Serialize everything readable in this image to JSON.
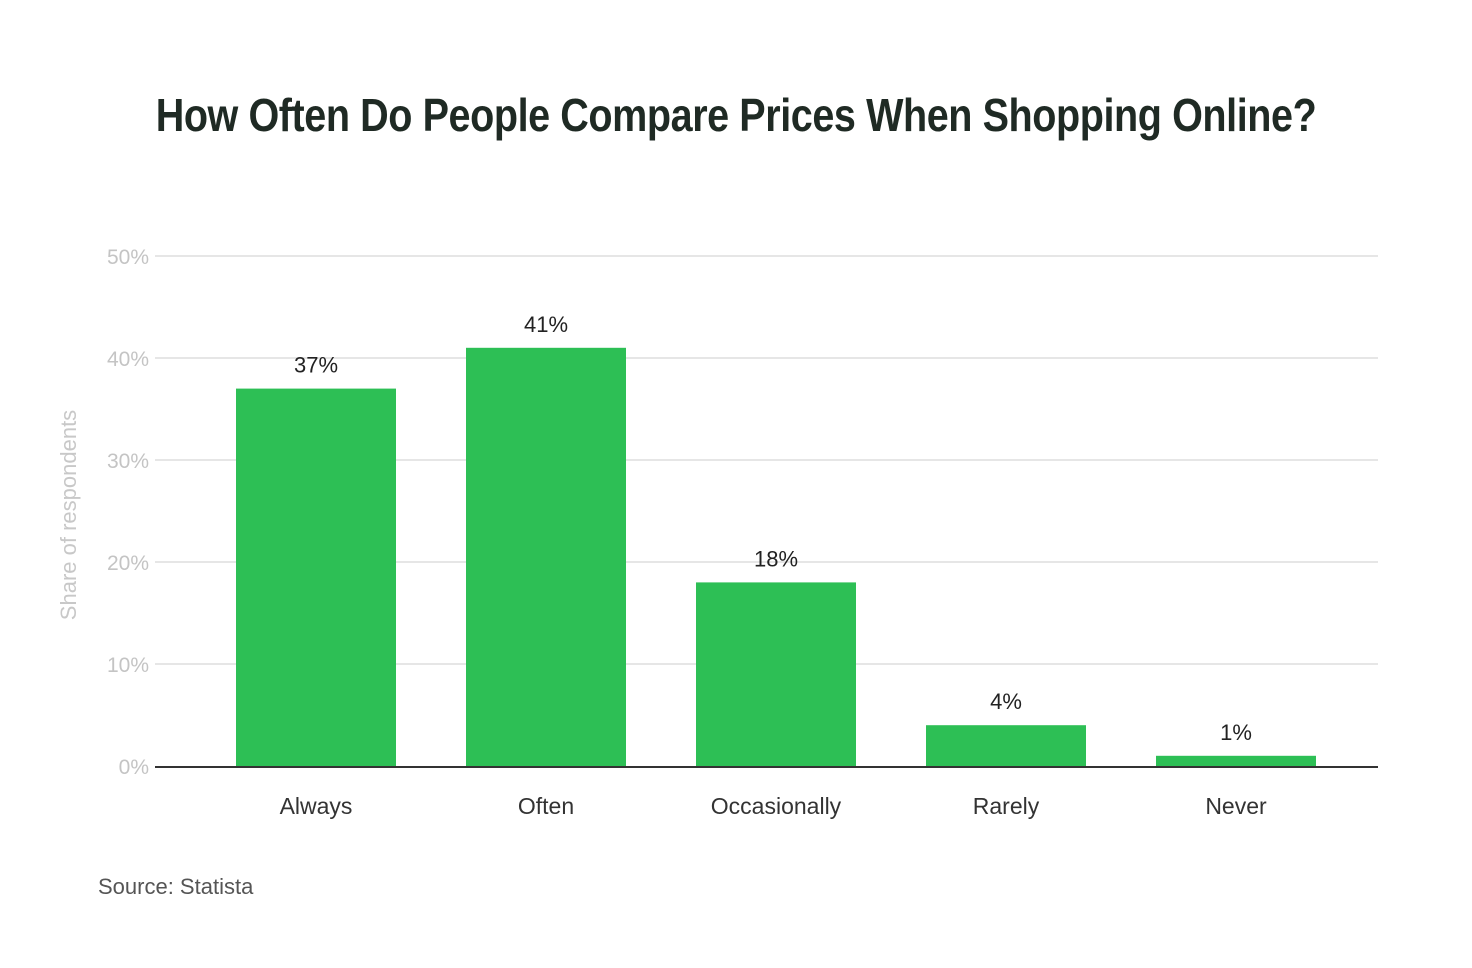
{
  "chart_data": {
    "type": "bar",
    "title": "How Often Do People Compare Prices When Shopping Online?",
    "xlabel": "",
    "ylabel": "Share of respondents",
    "categories": [
      "Always",
      "Often",
      "Occasionally",
      "Rarely",
      "Never"
    ],
    "values": [
      37,
      41,
      18,
      4,
      1
    ],
    "data_labels": [
      "37%",
      "41%",
      "18%",
      "4%",
      "1%"
    ],
    "ylim": [
      0,
      50
    ],
    "y_ticks": [
      0,
      10,
      20,
      30,
      40,
      50
    ],
    "y_tick_labels": [
      "0%",
      "10%",
      "20%",
      "30%",
      "40%",
      "50%"
    ],
    "grid": true,
    "legend": "none",
    "bar_color": "#2dbf55"
  },
  "source": "Source: Statista"
}
